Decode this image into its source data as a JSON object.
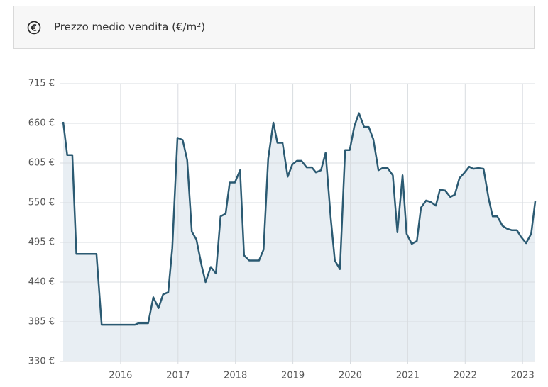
{
  "header": {
    "title": "Prezzo medio vendita (€/m²)"
  },
  "chart_data": {
    "type": "area",
    "line_color": "#2b5a72",
    "fill_color": "#e8eef3",
    "grid": true,
    "x": [
      2015.0,
      2015.07,
      2015.16,
      2015.23,
      2015.58,
      2015.67,
      2016.25,
      2016.31,
      2016.48,
      2016.57,
      2016.66,
      2016.74,
      2016.83,
      2016.9,
      2016.99,
      2017.08,
      2017.16,
      2017.24,
      2017.32,
      2017.41,
      2017.48,
      2017.57,
      2017.66,
      2017.74,
      2017.83,
      2017.9,
      2017.99,
      2018.08,
      2018.15,
      2018.24,
      2018.41,
      2018.49,
      2018.57,
      2018.66,
      2018.73,
      2018.82,
      2018.91,
      2018.99,
      2019.07,
      2019.15,
      2019.24,
      2019.33,
      2019.4,
      2019.49,
      2019.57,
      2019.66,
      2019.73,
      2019.82,
      2019.91,
      2019.99,
      2020.07,
      2020.15,
      2020.24,
      2020.32,
      2020.4,
      2020.49,
      2020.56,
      2020.65,
      2020.74,
      2020.82,
      2020.91,
      2020.98,
      2021.07,
      2021.16,
      2021.23,
      2021.32,
      2021.4,
      2021.49,
      2021.56,
      2021.65,
      2021.74,
      2021.82,
      2021.9,
      2021.98,
      2022.07,
      2022.14,
      2022.23,
      2022.32,
      2022.41,
      2022.48,
      2022.56,
      2022.65,
      2022.73,
      2022.81,
      2022.9,
      2022.97,
      2023.06,
      2023.15,
      2023.22
    ],
    "values": [
      662,
      616,
      616,
      479,
      479,
      381,
      381,
      383,
      383,
      419,
      404,
      423,
      426,
      487,
      640,
      637,
      609,
      510,
      499,
      463,
      440,
      461,
      452,
      531,
      535,
      578,
      578,
      595,
      477,
      470,
      470,
      485,
      611,
      661,
      633,
      633,
      586,
      603,
      608,
      608,
      599,
      599,
      592,
      595,
      619,
      528,
      470,
      458,
      623,
      623,
      656,
      674,
      655,
      655,
      638,
      595,
      598,
      598,
      588,
      509,
      588,
      507,
      493,
      497,
      543,
      553,
      551,
      546,
      568,
      567,
      558,
      561,
      584,
      591,
      600,
      597,
      598,
      597,
      555,
      531,
      531,
      518,
      514,
      512,
      512,
      503,
      494,
      507,
      552
    ],
    "xlim": [
      2015,
      2023.22
    ],
    "xticks": [
      2016,
      2017,
      2018,
      2019,
      2020,
      2021,
      2022,
      2023
    ],
    "ylim": [
      330,
      715
    ],
    "yticks": [
      {
        "value": 330,
        "label": "330 €"
      },
      {
        "value": 385,
        "label": "385 €"
      },
      {
        "value": 440,
        "label": "440 €"
      },
      {
        "value": 495,
        "label": "495 €"
      },
      {
        "value": 550,
        "label": "550 €"
      },
      {
        "value": 605,
        "label": "605 €"
      },
      {
        "value": 660,
        "label": "660 €"
      },
      {
        "value": 715,
        "label": "715 €"
      }
    ]
  }
}
